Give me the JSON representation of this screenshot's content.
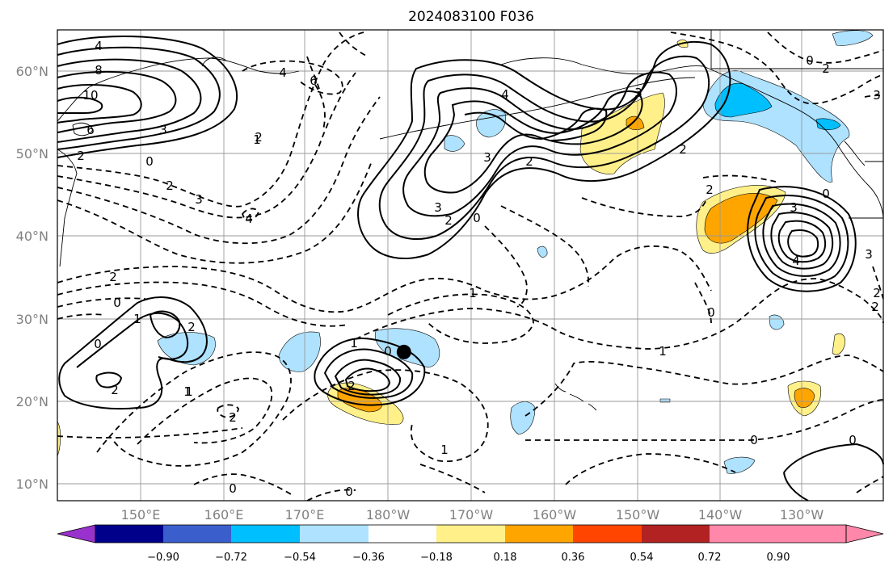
{
  "title": "2024083100 F036",
  "map": {
    "lat_labels": [
      "10°N",
      "20°N",
      "30°N",
      "40°N",
      "50°N",
      "60°N"
    ],
    "lon_labels": [
      "150°E",
      "160°E",
      "170°E",
      "180°W",
      "170°W",
      "160°W",
      "150°W",
      "140°W",
      "130°W"
    ],
    "lat_range": [
      8,
      65
    ],
    "lon_range": [
      140,
      242
    ],
    "grid": true,
    "marker": {
      "name": "storm-center",
      "lon": 182.8,
      "lat": 26.0
    },
    "contour_labels": [
      "4",
      "8",
      "10",
      "6",
      "3",
      "2",
      "0",
      "2",
      "3",
      "4",
      "6",
      "4",
      "2",
      "1",
      "4",
      "3",
      "3",
      "2",
      "0",
      "3",
      "2",
      "2",
      "0",
      "2",
      "3",
      "3",
      "2",
      "0",
      "4",
      "3",
      "2",
      "2",
      "1",
      "0",
      "1",
      "2",
      "0",
      "1",
      "2",
      "2",
      "1",
      "0",
      "2",
      "2",
      "0",
      "1",
      "1",
      "1",
      "0",
      "0",
      "0",
      "0"
    ]
  },
  "colorbar": {
    "ticks": [
      "−0.90",
      "−0.72",
      "−0.54",
      "−0.36",
      "−0.18",
      "0.18",
      "0.36",
      "0.54",
      "0.72",
      "0.90"
    ],
    "colors": [
      "#9932cc",
      "#00008b",
      "#3a5fcd",
      "#00bfff",
      "#aee2ff",
      "#ffffff",
      "#fff08a",
      "#ffa500",
      "#ff4500",
      "#b22222",
      "#ff88aa"
    ]
  }
}
